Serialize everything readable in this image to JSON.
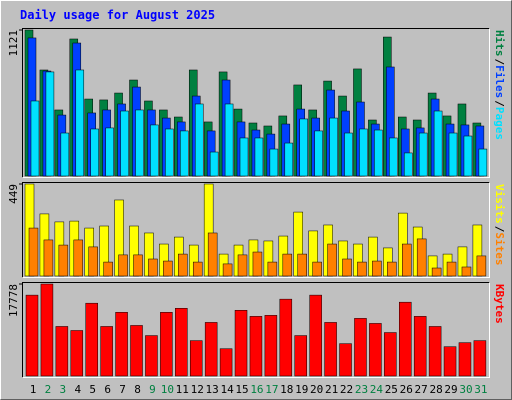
{
  "chart_data": [
    {
      "type": "bar",
      "title": "Daily usage for August 2025",
      "legend_separator": "/",
      "ylim": [
        0,
        1121
      ],
      "yticks": [
        1121
      ],
      "series": [
        {
          "name": "Hits",
          "color": "#008040",
          "values": [
            1121,
            814,
            507,
            1052,
            591,
            584,
            637,
            737,
            576,
            507,
            453,
            814,
            415,
            799,
            514,
            407,
            384,
            461,
            699,
            507,
            729,
            614,
            822,
            430,
            1067,
            453,
            430,
            637,
            461,
            553,
            407
          ]
        },
        {
          "name": "Files",
          "color": "#0040ff",
          "values": [
            1060,
            806,
            468,
            1021,
            484,
            507,
            553,
            683,
            507,
            445,
            415,
            614,
            346,
            737,
            415,
            353,
            322,
            399,
            514,
            445,
            660,
            499,
            568,
            399,
            837,
            361,
            369,
            591,
            399,
            392,
            384
          ]
        },
        {
          "name": "Pages",
          "color": "#00e0ff",
          "values": [
            576,
            799,
            330,
            814,
            361,
            369,
            499,
            507,
            392,
            361,
            346,
            553,
            184,
            553,
            292,
            292,
            207,
            253,
            438,
            346,
            445,
            330,
            361,
            353,
            292,
            177,
            330,
            499,
            330,
            307,
            207
          ]
        }
      ]
    },
    {
      "type": "bar",
      "legend_separator": "/",
      "ylim": [
        0,
        449
      ],
      "yticks": [
        449
      ],
      "series": [
        {
          "name": "Visits",
          "color": "#ffff00",
          "values": [
            449,
            303,
            264,
            268,
            234,
            244,
            371,
            244,
            210,
            156,
            190,
            151,
            449,
            107,
            151,
            176,
            171,
            195,
            312,
            220,
            249,
            171,
            156,
            190,
            137,
            307,
            239,
            98,
            107,
            142,
            249
          ]
        },
        {
          "name": "Sites",
          "color": "#ff8000",
          "values": [
            234,
            176,
            151,
            176,
            142,
            68,
            103,
            103,
            83,
            73,
            107,
            68,
            210,
            59,
            103,
            117,
            68,
            107,
            107,
            68,
            156,
            83,
            68,
            73,
            68,
            156,
            181,
            39,
            68,
            44,
            98
          ]
        }
      ]
    },
    {
      "type": "bar",
      "ylim": [
        0,
        17778
      ],
      "yticks": [
        17778
      ],
      "categories": [
        "1",
        "2",
        "3",
        "4",
        "5",
        "6",
        "7",
        "8",
        "9",
        "10",
        "11",
        "12",
        "13",
        "14",
        "15",
        "16",
        "17",
        "18",
        "19",
        "20",
        "21",
        "22",
        "23",
        "24",
        "25",
        "26",
        "27",
        "28",
        "29",
        "30",
        "31"
      ],
      "category_colors": [
        "#000000",
        "#008040",
        "#008040",
        "#000000",
        "#000000",
        "#000000",
        "#000000",
        "#000000",
        "#008040",
        "#008040",
        "#000000",
        "#000000",
        "#000000",
        "#000000",
        "#000000",
        "#008040",
        "#008040",
        "#000000",
        "#000000",
        "#000000",
        "#000000",
        "#000000",
        "#008040",
        "#008040",
        "#000000",
        "#000000",
        "#000000",
        "#000000",
        "#000000",
        "#008040",
        "#008040"
      ],
      "series": [
        {
          "name": "KBytes",
          "color": "#ff0000",
          "values": [
            15629,
            17778,
            9575,
            8793,
            14069,
            9575,
            12310,
            9770,
            7816,
            12310,
            13092,
            6839,
            10356,
            5276,
            12701,
            11528,
            11724,
            14851,
            7816,
            15629,
            10356,
            6253,
            11138,
            10161,
            8402,
            14265,
            11528,
            9575,
            5667,
            6448,
            6839
          ]
        }
      ]
    }
  ]
}
